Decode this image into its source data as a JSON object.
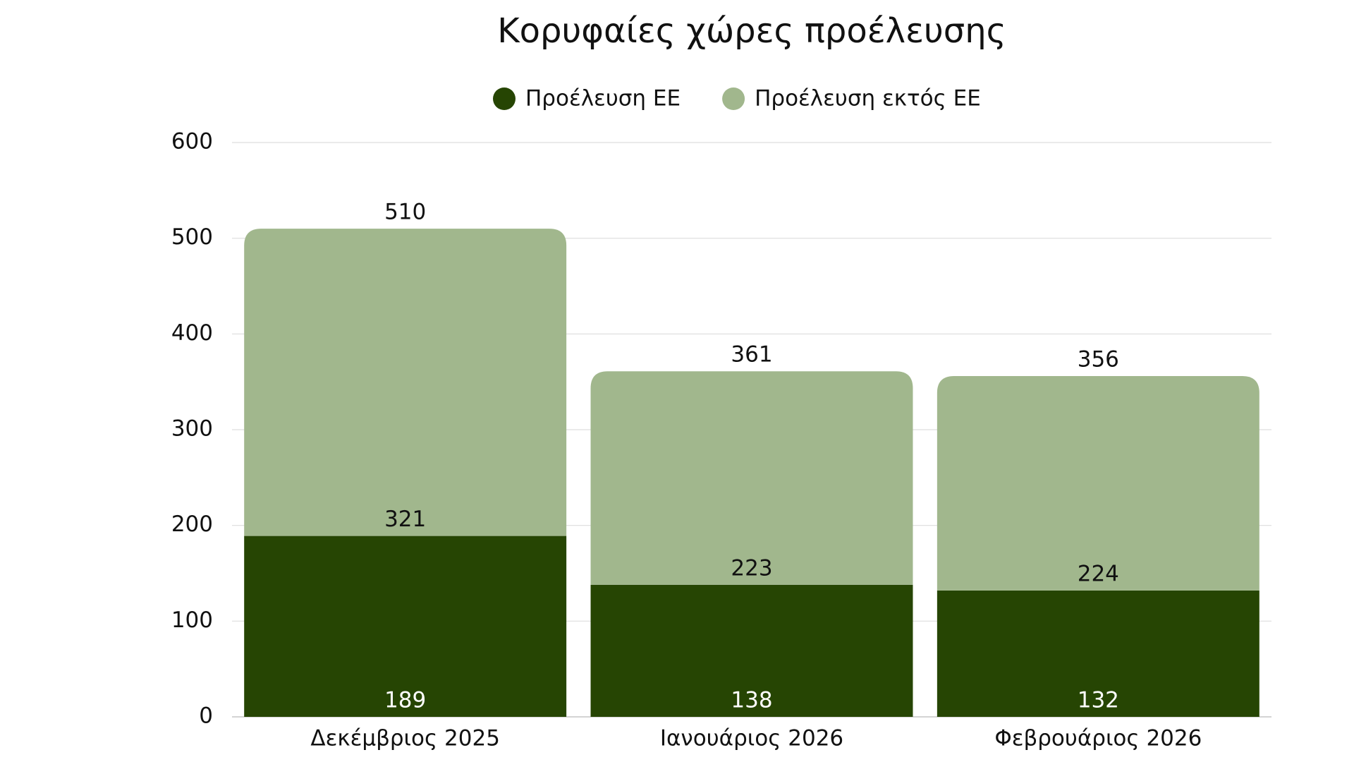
{
  "chart_data": {
    "type": "stacked-bar",
    "title": "Κορυφαίες χώρες προέλευσης",
    "categories": [
      "Δεκέμβριος 2025",
      "Ιανουάριος 2026",
      "Φεβρουάριος 2026"
    ],
    "series": [
      {
        "name": "Προέλευση ΕΕ",
        "color": "#264503",
        "values": [
          189,
          138,
          132
        ]
      },
      {
        "name": "Προέλευση εκτός ΕΕ",
        "color": "#a1b78d",
        "values": [
          321,
          223,
          224
        ]
      }
    ],
    "totals": [
      510,
      361,
      356
    ],
    "ylim": [
      0,
      600
    ],
    "yticks": [
      0,
      100,
      200,
      300,
      400,
      500,
      600
    ],
    "grid": true,
    "legend": "top"
  }
}
